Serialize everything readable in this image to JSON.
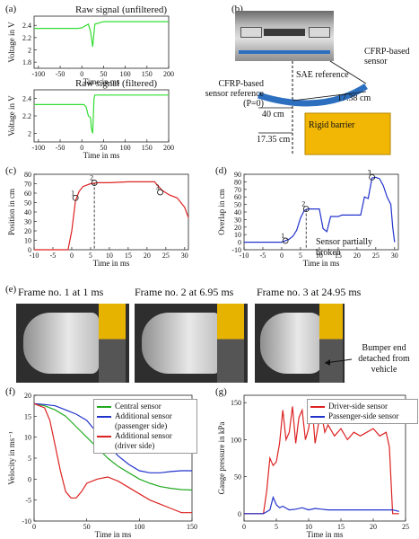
{
  "panels": {
    "a": "(a)",
    "b": "(b)",
    "c": "(c)",
    "d": "(d)",
    "e": "(e)",
    "f": "(f)",
    "g": "(g)"
  },
  "a": {
    "top_title": "Raw signal (unfiltered)",
    "bottom_title": "Raw signal (filtered)",
    "ylabel": "Voltage in V",
    "xlabel": "Time in ms",
    "top_yticks": [
      "1.8",
      "2",
      "2.2",
      "2.4"
    ],
    "bottom_yticks": [
      "2",
      "2.2",
      "2.4"
    ],
    "xticks": [
      "-100",
      "-50",
      "0",
      "50",
      "100",
      "150",
      "200"
    ]
  },
  "b": {
    "sae": "SAE reference",
    "cfrp_sensor": "CFRP-based sensor",
    "cfrp_ref": "CFRP-based sensor reference (P=0)",
    "d1": "17.38 cm",
    "d2": "40 cm",
    "d3": "17.35 cm",
    "barrier": "Rigid barrier"
  },
  "c": {
    "ylabel": "Position in cm",
    "xlabel": "Time in ms",
    "yticks": [
      "0",
      "10",
      "20",
      "30",
      "40",
      "50",
      "60",
      "70",
      "80"
    ],
    "xticks": [
      "-10",
      "-5",
      "0",
      "5",
      "10",
      "15",
      "20",
      "25",
      "30"
    ],
    "markers": [
      "1",
      "2",
      "3"
    ]
  },
  "d": {
    "ylabel": "Overlap in cm",
    "xlabel": "Time in ms",
    "yticks": [
      "-10",
      "0",
      "10",
      "20",
      "30",
      "40",
      "50",
      "60",
      "70",
      "80",
      "90"
    ],
    "xticks": [
      "-10",
      "-5",
      "0",
      "5",
      "10",
      "15",
      "20",
      "25",
      "30"
    ],
    "markers": [
      "1",
      "2",
      "3"
    ],
    "annotation": "Sensor partially broken"
  },
  "e": {
    "frames": [
      "Frame  no. 1 at 1 ms",
      "Frame  no. 2 at 6.95 ms",
      "Frame  no. 3 at 24.95 ms"
    ],
    "annotation": "Bumper end detached from vehicle"
  },
  "f": {
    "ylabel": "Velocity in ms⁻¹",
    "xlabel": "Time in ms",
    "yticks": [
      "-10",
      "-5",
      "0",
      "5",
      "10",
      "15",
      "20"
    ],
    "xticks": [
      "0",
      "50",
      "100",
      "150"
    ],
    "legend": [
      "Central sensor",
      "Additional sensor (passenger side)",
      "Additional sensor (driver side)"
    ],
    "colors": [
      "#22aa22",
      "#2233cc",
      "#dd2222"
    ]
  },
  "g": {
    "ylabel": "Gauge pressure in kPa",
    "xlabel": "Time in ms",
    "yticks": [
      "0",
      "50",
      "100",
      "150"
    ],
    "xticks": [
      "0",
      "5",
      "10",
      "15",
      "20",
      "25"
    ],
    "legend": [
      "Driver-side sensor",
      "Passenger-side sensor"
    ],
    "colors": [
      "#dd2222",
      "#2233cc"
    ]
  },
  "chart_data": [
    {
      "type": "line",
      "id": "a-top",
      "title": "Raw signal (unfiltered)",
      "xlabel": "Time in ms",
      "ylabel": "Voltage in V",
      "xlim": [
        -110,
        200
      ],
      "ylim": [
        1.7,
        2.55
      ],
      "x": [
        -110,
        -100,
        -90,
        -80,
        -70,
        -50,
        -30,
        -10,
        0,
        5,
        10,
        15,
        20,
        25,
        30,
        50,
        80,
        100,
        150,
        200
      ],
      "y": [
        2.35,
        2.35,
        2.35,
        2.35,
        2.35,
        2.35,
        2.35,
        2.35,
        2.36,
        2.38,
        2.4,
        2.42,
        2.3,
        2.05,
        2.42,
        2.46,
        2.46,
        2.46,
        2.46,
        2.46
      ]
    },
    {
      "type": "line",
      "id": "a-bottom",
      "title": "Raw signal (filtered)",
      "xlabel": "Time in ms",
      "ylabel": "Voltage in V",
      "xlim": [
        -110,
        200
      ],
      "ylim": [
        1.9,
        2.5
      ],
      "x": [
        -110,
        0,
        5,
        10,
        15,
        20,
        22,
        25,
        28,
        30,
        35,
        50,
        100,
        200
      ],
      "y": [
        2.33,
        2.33,
        2.33,
        2.3,
        2.2,
        2.18,
        2.05,
        2.0,
        2.4,
        2.44,
        2.44,
        2.44,
        2.44,
        2.44
      ]
    },
    {
      "type": "line",
      "id": "c",
      "xlabel": "Time in ms",
      "ylabel": "Position in cm",
      "xlim": [
        -10,
        31
      ],
      "ylim": [
        0,
        80
      ],
      "x": [
        -10,
        -1,
        0,
        1,
        2,
        3,
        5,
        7,
        10,
        15,
        20,
        22,
        24,
        26,
        28,
        30,
        31
      ],
      "y": [
        0,
        0,
        20,
        52,
        62,
        67,
        70,
        71,
        71,
        72,
        72,
        72,
        63,
        58,
        55,
        45,
        34
      ]
    },
    {
      "type": "line",
      "id": "d",
      "xlabel": "Time in ms",
      "ylabel": "Overlap in cm",
      "xlim": [
        -10,
        31
      ],
      "ylim": [
        -10,
        90
      ],
      "x": [
        -10,
        0,
        1,
        2,
        3,
        4,
        5,
        6,
        7,
        8,
        9,
        10,
        11,
        12,
        13,
        14,
        15,
        16,
        20,
        21,
        22,
        23,
        24,
        25,
        26,
        27,
        28,
        29,
        29.5,
        30
      ],
      "y": [
        0,
        0,
        2,
        4,
        8,
        16,
        32,
        42,
        44,
        44,
        44,
        44,
        18,
        14,
        34,
        34,
        34,
        36,
        36,
        36,
        60,
        58,
        85,
        86,
        84,
        75,
        60,
        50,
        20,
        0
      ]
    },
    {
      "type": "line",
      "id": "f",
      "xlabel": "Time in ms",
      "ylabel": "Velocity in ms⁻¹",
      "xlim": [
        0,
        150
      ],
      "ylim": [
        -10,
        20
      ],
      "series": [
        {
          "name": "Central sensor",
          "x": [
            0,
            10,
            20,
            30,
            40,
            50,
            60,
            70,
            80,
            90,
            100,
            110,
            120,
            130,
            140,
            150
          ],
          "y": [
            18,
            17.5,
            16.5,
            15,
            12.5,
            10,
            7.5,
            5,
            3,
            1.5,
            0,
            -1,
            -1.8,
            -2.2,
            -2.5,
            -2.6
          ]
        },
        {
          "name": "Additional sensor (passenger side)",
          "x": [
            0,
            10,
            20,
            30,
            40,
            50,
            60,
            70,
            80,
            90,
            100,
            110,
            120,
            130,
            140,
            150
          ],
          "y": [
            18,
            17.8,
            17.5,
            16.5,
            15.5,
            14,
            11,
            8,
            5.5,
            3.5,
            2,
            1.5,
            1.5,
            1.8,
            2,
            2
          ]
        },
        {
          "name": "Additional sensor (driver side)",
          "x": [
            0,
            5,
            10,
            15,
            20,
            25,
            30,
            35,
            40,
            45,
            50,
            60,
            70,
            80,
            90,
            100,
            110,
            120,
            130,
            140,
            150
          ],
          "y": [
            18,
            17.5,
            17,
            14,
            8,
            2,
            -3,
            -4.5,
            -4.5,
            -3,
            -1,
            0,
            0.5,
            -0.5,
            -2,
            -3.5,
            -5,
            -6,
            -7,
            -8,
            -8
          ]
        }
      ]
    },
    {
      "type": "line",
      "id": "g",
      "xlabel": "Time in ms",
      "ylabel": "Gauge pressure in kPa",
      "xlim": [
        0,
        25
      ],
      "ylim": [
        -10,
        160
      ],
      "series": [
        {
          "name": "Driver-side sensor",
          "x": [
            0,
            3,
            3.5,
            4,
            4.5,
            5,
            5.5,
            6,
            6.5,
            7,
            7.5,
            8,
            8.5,
            9,
            9.5,
            10,
            10.5,
            11,
            11.5,
            12,
            12.5,
            13,
            14,
            15,
            16,
            17,
            18,
            19,
            20,
            21,
            22,
            22.5,
            23,
            24
          ],
          "y": [
            0,
            0,
            30,
            75,
            65,
            70,
            95,
            140,
            100,
            110,
            145,
            95,
            130,
            140,
            100,
            115,
            150,
            95,
            120,
            135,
            110,
            120,
            105,
            115,
            100,
            110,
            105,
            110,
            115,
            105,
            110,
            90,
            0,
            0
          ]
        },
        {
          "name": "Passenger-side sensor",
          "x": [
            0,
            3,
            4,
            4.5,
            5,
            5.5,
            6,
            7,
            8,
            9,
            10,
            11,
            12,
            13,
            14,
            16,
            18,
            20,
            22,
            23,
            24
          ],
          "y": [
            0,
            0,
            5,
            22,
            12,
            8,
            10,
            5,
            6,
            8,
            5,
            7,
            6,
            5,
            5,
            5,
            5,
            5,
            5,
            5,
            3
          ]
        }
      ]
    }
  ]
}
